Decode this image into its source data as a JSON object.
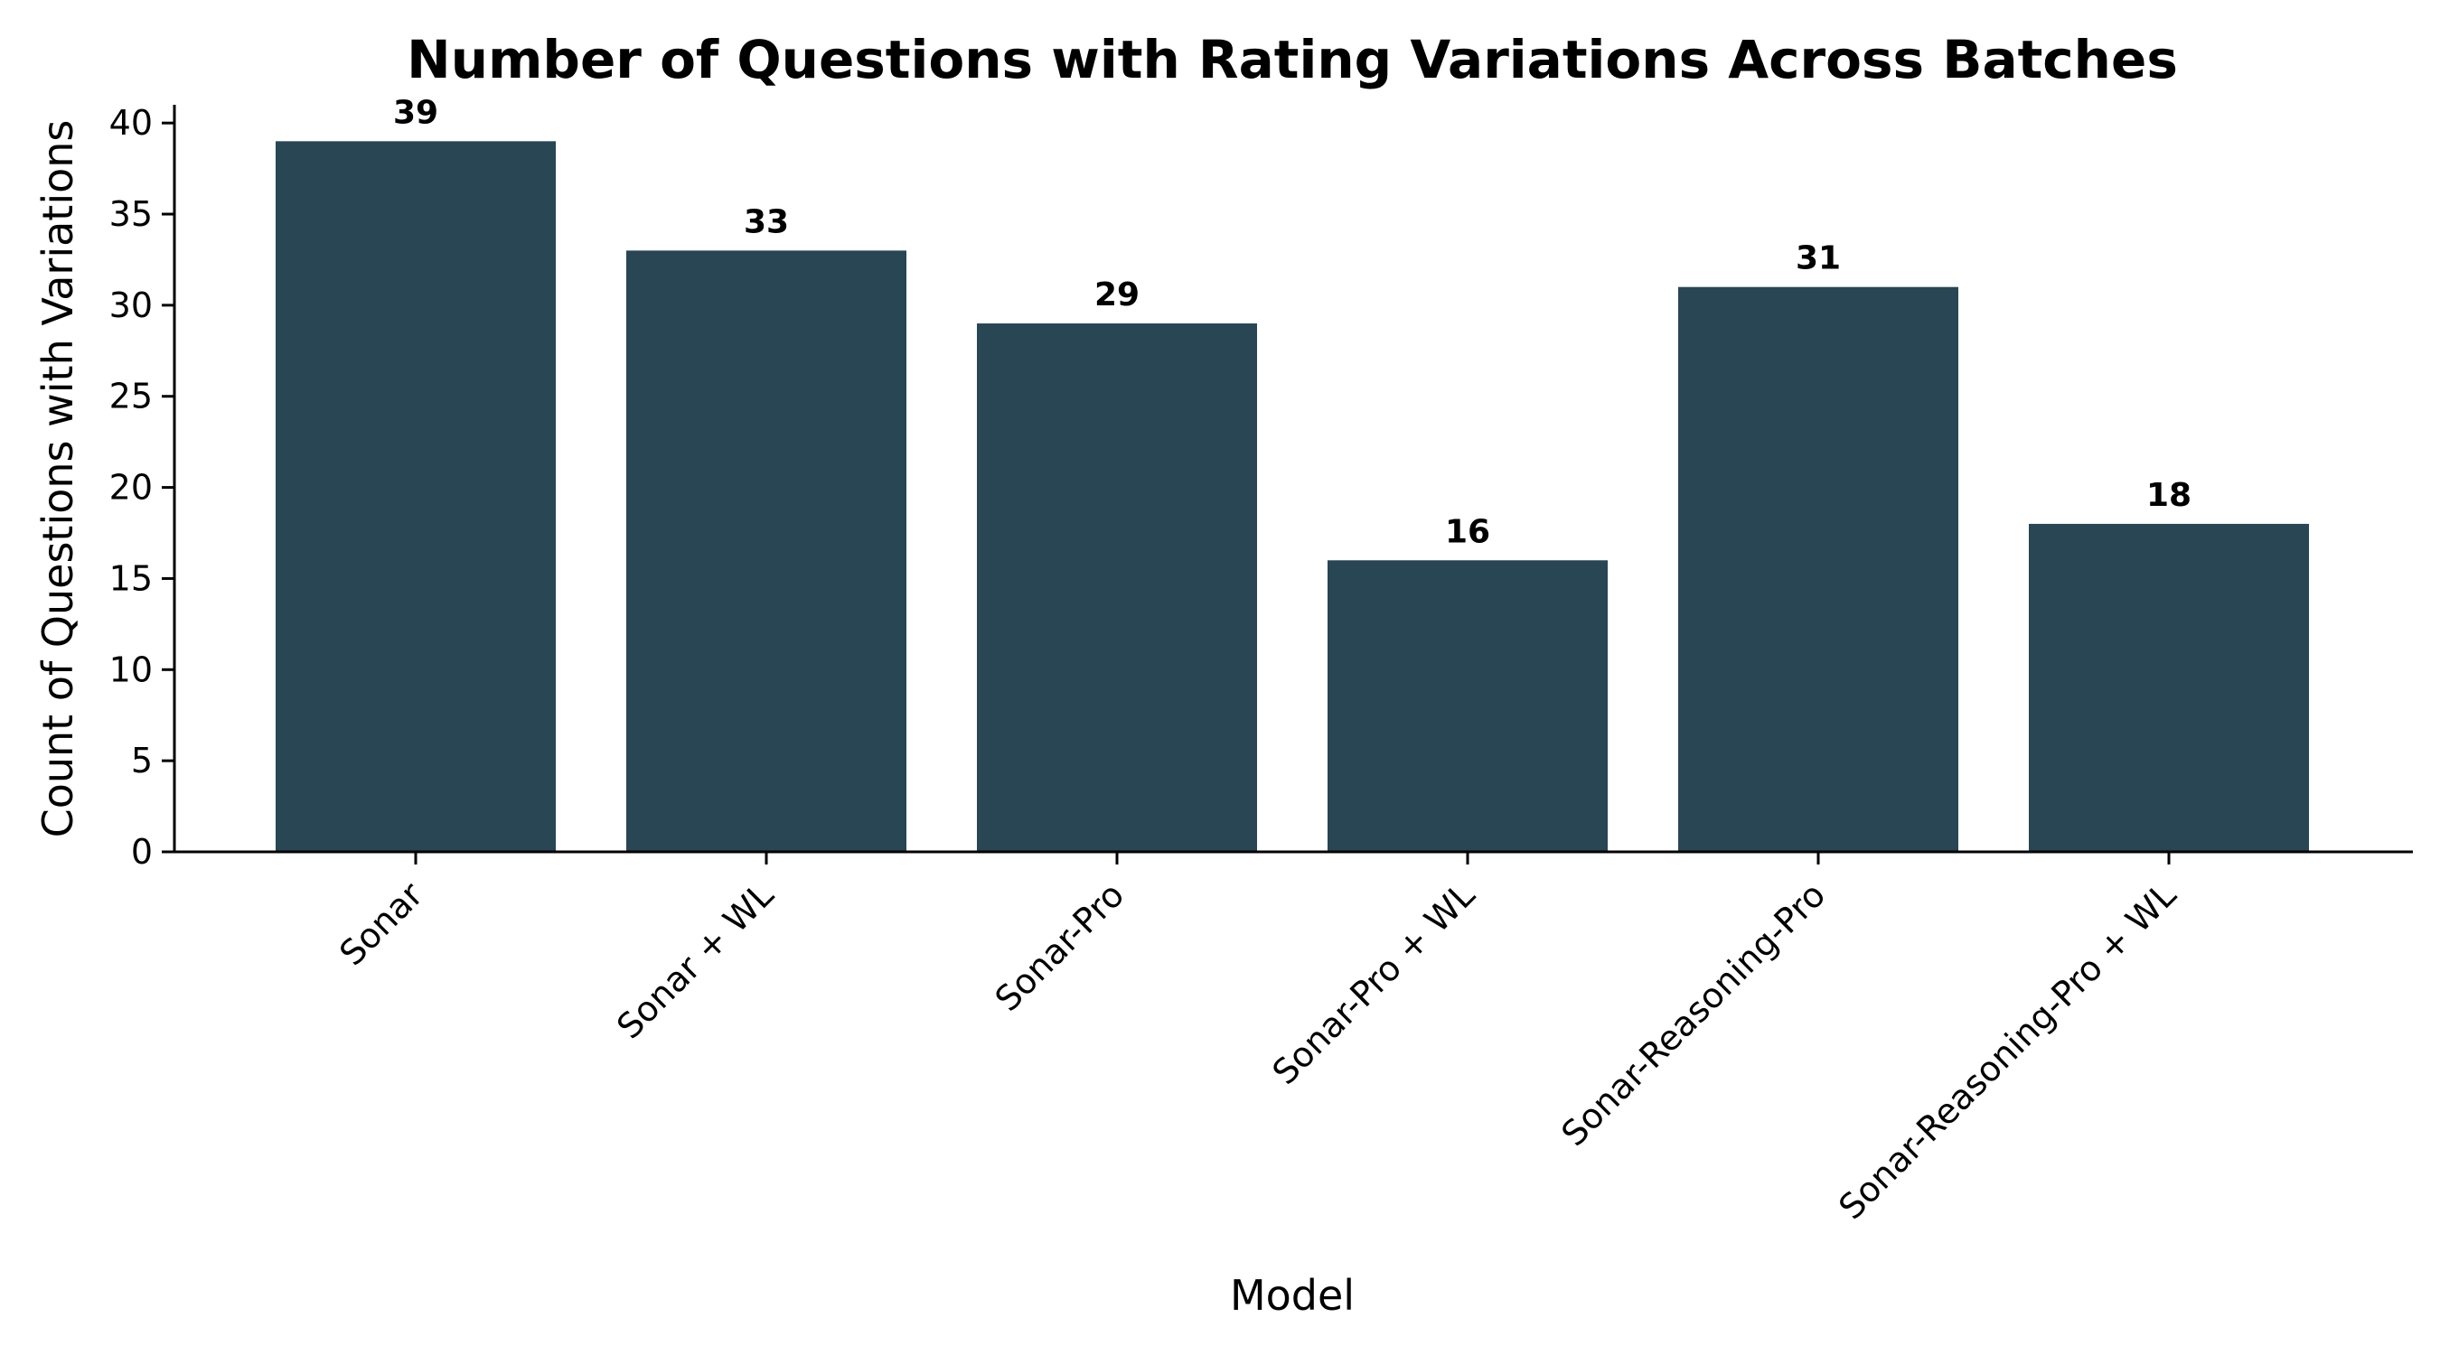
{
  "chart_data": {
    "type": "bar",
    "title": "Number of Questions with Rating Variations Across Batches",
    "xlabel": "Model",
    "ylabel": "Count of Questions with Variations",
    "categories": [
      "Sonar",
      "Sonar + WL",
      "Sonar-Pro",
      "Sonar-Pro + WL",
      "Sonar-Reasoning-Pro",
      "Sonar-Reasoning-Pro + WL"
    ],
    "values": [
      39,
      33,
      29,
      16,
      31,
      18
    ],
    "ylim": [
      0,
      41
    ],
    "yticks": [
      0,
      5,
      10,
      15,
      20,
      25,
      30,
      35,
      40
    ],
    "bar_color": "#284654",
    "grid": false,
    "data_labels": true,
    "xtick_rotation": "45deg"
  }
}
